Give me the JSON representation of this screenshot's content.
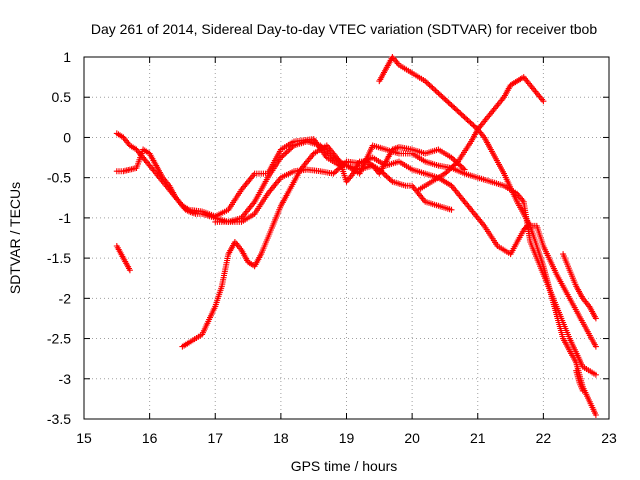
{
  "chart_data": {
    "type": "scatter",
    "title": "Day 261 of 2014, Sidereal Day-to-day VTEC variation (SDTVAR) for receiver tbob",
    "xlabel": "GPS time / hours",
    "ylabel": "SDTVAR / TECUs",
    "xlim": [
      15,
      23
    ],
    "ylim": [
      -3.5,
      1
    ],
    "xticks": [
      15,
      16,
      17,
      18,
      19,
      20,
      21,
      22,
      23
    ],
    "yticks": [
      -3.5,
      -3,
      -2.5,
      -2,
      -1.5,
      -1,
      -0.5,
      0,
      0.5,
      1
    ],
    "xtick_labels": [
      "15",
      "16",
      "17",
      "18",
      "19",
      "20",
      "21",
      "22",
      "23"
    ],
    "ytick_labels": [
      "-3.5",
      "-3",
      "-2.5",
      "-2",
      "-1.5",
      "-1",
      "-0.5",
      "0",
      "0.5",
      "1"
    ],
    "grid": true,
    "marker": "+",
    "color": "#ff0000",
    "series": [
      {
        "x": [
          15.5,
          15.6,
          15.7
        ],
        "y": [
          -1.35,
          -1.5,
          -1.65
        ]
      },
      {
        "x": [
          15.5,
          15.6,
          15.7,
          15.8,
          15.9,
          16.0,
          16.1,
          16.2,
          16.3,
          16.4,
          16.5,
          16.55,
          16.6,
          16.7,
          16.8,
          17.0,
          17.2,
          17.4,
          17.6,
          17.8,
          18.0,
          18.2,
          18.4,
          18.6,
          18.8,
          19.0,
          19.2,
          19.4,
          19.6,
          19.8,
          20.0,
          20.2,
          20.4,
          20.5,
          20.6,
          20.7,
          20.8,
          21.0,
          21.1,
          21.3,
          21.5,
          21.7,
          21.75,
          21.9,
          22.0,
          22.2,
          22.4,
          22.6,
          22.8
        ],
        "y": [
          0.05,
          0.0,
          -0.1,
          -0.15,
          -0.25,
          -0.35,
          -0.45,
          -0.55,
          -0.65,
          -0.75,
          -0.85,
          -0.9,
          -0.92,
          -0.95,
          -0.95,
          -1.0,
          -1.05,
          -1.05,
          -0.95,
          -0.7,
          -0.5,
          -0.42,
          -0.4,
          -0.42,
          -0.45,
          -0.3,
          -0.32,
          -0.25,
          -0.35,
          -0.3,
          -0.4,
          -0.45,
          -0.5,
          -0.55,
          -0.6,
          -0.7,
          -0.8,
          -1.0,
          -1.1,
          -1.35,
          -1.45,
          -1.15,
          -1.1,
          -1.1,
          -1.35,
          -1.7,
          -2.0,
          -2.3,
          -2.6
        ]
      },
      {
        "x": [
          15.5,
          15.6,
          15.7,
          15.8,
          15.9,
          16.0,
          16.1,
          16.2,
          16.3,
          16.4,
          16.5,
          16.6,
          16.8,
          17.0,
          17.2,
          17.4,
          17.6,
          17.8,
          18.0,
          18.2,
          18.5,
          18.7,
          18.9,
          19.0,
          19.2,
          19.4,
          19.6,
          19.8,
          20.0,
          20.2,
          20.4,
          20.6,
          20.8,
          21.0,
          21.2,
          21.4,
          21.6,
          21.7,
          21.8,
          22.0,
          22.2,
          22.4,
          22.6,
          22.8
        ],
        "y": [
          -0.42,
          -0.42,
          -0.4,
          -0.38,
          -0.15,
          -0.2,
          -0.35,
          -0.5,
          -0.6,
          -0.75,
          -0.85,
          -0.9,
          -0.92,
          -0.98,
          -0.9,
          -0.65,
          -0.45,
          -0.45,
          -0.15,
          -0.05,
          -0.02,
          -0.25,
          -0.35,
          -0.35,
          -0.45,
          -0.1,
          -0.15,
          -0.2,
          -0.2,
          -0.3,
          -0.35,
          -0.38,
          -0.45,
          -0.5,
          -0.55,
          -0.6,
          -0.7,
          -0.8,
          -1.3,
          -1.7,
          -2.1,
          -2.5,
          -2.85,
          -2.95
        ]
      },
      {
        "x": [
          16.5,
          16.6,
          16.8,
          17.0,
          17.1,
          17.2,
          17.3,
          17.4,
          17.5,
          17.6,
          17.7,
          17.8,
          17.9,
          18.0,
          18.1,
          18.3,
          18.5,
          18.7,
          18.9,
          19.0,
          19.1,
          19.2,
          19.3,
          19.5,
          19.7,
          19.9,
          20.0,
          20.2,
          20.4,
          20.6
        ],
        "y": [
          -2.6,
          -2.55,
          -2.45,
          -2.1,
          -1.85,
          -1.45,
          -1.3,
          -1.4,
          -1.55,
          -1.6,
          -1.45,
          -1.25,
          -1.05,
          -0.85,
          -0.7,
          -0.4,
          -0.2,
          -0.1,
          -0.3,
          -0.55,
          -0.45,
          -0.3,
          -0.3,
          -0.4,
          -0.55,
          -0.6,
          -0.6,
          -0.8,
          -0.85,
          -0.9
        ]
      },
      {
        "x": [
          17.0,
          17.2,
          17.4,
          17.6,
          17.8,
          18.0,
          18.2,
          18.4,
          18.6,
          18.8,
          19.0,
          19.2,
          19.4,
          19.5,
          19.6,
          19.7,
          19.8,
          20.0,
          20.2,
          20.4,
          20.6,
          20.8
        ],
        "y": [
          -1.05,
          -1.05,
          -1.0,
          -0.8,
          -0.5,
          -0.25,
          -0.1,
          -0.05,
          -0.1,
          -0.25,
          -0.35,
          -0.4,
          -0.35,
          -0.45,
          -0.3,
          -0.15,
          -0.12,
          -0.15,
          -0.2,
          -0.15,
          -0.25,
          -0.4
        ]
      },
      {
        "x": [
          19.5,
          19.6,
          19.7,
          19.8,
          20.0,
          20.2,
          20.4,
          20.6,
          20.8,
          21.0,
          21.1,
          21.2,
          21.4,
          21.6,
          21.8,
          22.0,
          22.1,
          22.2,
          22.3,
          22.5,
          22.6,
          22.8
        ],
        "y": [
          0.7,
          0.85,
          1.0,
          0.9,
          0.8,
          0.7,
          0.55,
          0.4,
          0.25,
          0.1,
          0.0,
          -0.15,
          -0.45,
          -0.8,
          -1.1,
          -1.6,
          -1.9,
          -2.2,
          -2.5,
          -2.8,
          -3.1,
          -3.45
        ]
      },
      {
        "x": [
          20.1,
          20.3,
          20.5,
          20.7,
          20.9,
          21.0,
          21.2,
          21.4,
          21.5,
          21.6,
          21.7,
          21.8,
          21.9,
          22.0
        ],
        "y": [
          -0.65,
          -0.55,
          -0.45,
          -0.3,
          -0.05,
          0.1,
          0.3,
          0.5,
          0.65,
          0.7,
          0.75,
          0.65,
          0.55,
          0.45
        ]
      },
      {
        "x": [
          22.3,
          22.4,
          22.5,
          22.6,
          22.7,
          22.8
        ],
        "y": [
          -1.45,
          -1.65,
          -1.85,
          -2.0,
          -2.1,
          -2.25
        ]
      },
      {
        "x": [
          22.5,
          22.55,
          22.6
        ],
        "y": [
          -2.9,
          -3.05,
          -3.15
        ]
      }
    ]
  }
}
